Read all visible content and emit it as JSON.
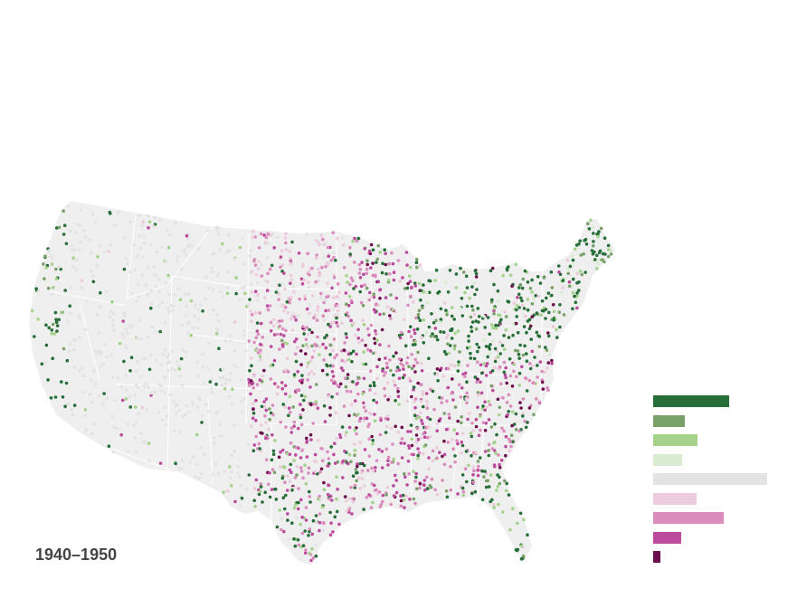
{
  "map": {
    "period_label": "1940–1950",
    "colors": {
      "land": "#efefef",
      "state_border": "#ffffff",
      "strong_gain": "#276e39",
      "gain": "#7ba16a",
      "moderate_gain": "#a5d38c",
      "slight_gain": "#d9ebd1",
      "no_change": "#e3e3e3",
      "slight_loss": "#eccbdc",
      "moderate_loss": "#da8cbd",
      "loss": "#bb4c9d",
      "strong_loss": "#6d0f4d"
    }
  },
  "legend": {
    "bins": [
      {
        "key": "strong_gain",
        "color": "#276e39",
        "value": 0.6
      },
      {
        "key": "gain",
        "color": "#7ba16a",
        "value": 0.25
      },
      {
        "key": "moderate_gain",
        "color": "#a5d38c",
        "value": 0.35
      },
      {
        "key": "slight_gain",
        "color": "#d9ebd1",
        "value": 0.23
      },
      {
        "key": "no_change",
        "color": "#e3e3e3",
        "value": 0.9
      },
      {
        "key": "slight_loss",
        "color": "#eccbdc",
        "value": 0.34
      },
      {
        "key": "moderate_loss",
        "color": "#da8cbd",
        "value": 0.56
      },
      {
        "key": "loss",
        "color": "#bb4c9d",
        "value": 0.22
      },
      {
        "key": "strong_loss",
        "color": "#6d0f4d",
        "value": 0.06
      }
    ]
  }
}
